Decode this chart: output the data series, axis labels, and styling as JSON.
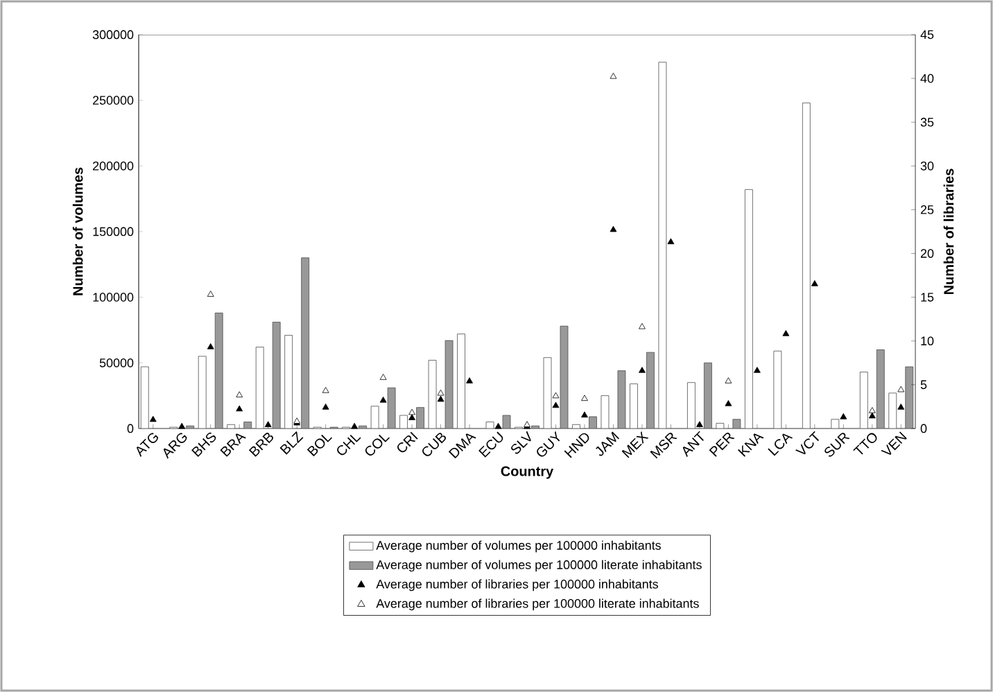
{
  "chart_data": {
    "type": "bar",
    "xlabel": "Country",
    "ylabel": "Number of volumes",
    "y2label": "Number of libraries",
    "categories": [
      "ATG",
      "ARG",
      "BHS",
      "BRA",
      "BRB",
      "BLZ",
      "BOL",
      "CHL",
      "COL",
      "CRI",
      "CUB",
      "DMA",
      "ECU",
      "SLV",
      "GUY",
      "HND",
      "JAM",
      "MEX",
      "MSR",
      "ANT",
      "PER",
      "KNA",
      "LCA",
      "VCT",
      "SUR",
      "TTO",
      "VEN"
    ],
    "series": [
      {
        "name": "Average number of volumes per 100000 inhabitants",
        "color": "#ffffff",
        "values": [
          47000,
          1000,
          55000,
          3000,
          62000,
          71000,
          1000,
          1000,
          17000,
          10000,
          52000,
          72000,
          5000,
          1000,
          54000,
          3000,
          25000,
          34000,
          279000,
          35000,
          4000,
          182000,
          59000,
          248000,
          7000,
          43000,
          27000
        ]
      },
      {
        "name": "Average number of volumes per 100000 literate inhabitants",
        "color": "#999999",
        "values": [
          null,
          2000,
          88000,
          5000,
          81000,
          130000,
          1000,
          2000,
          31000,
          16000,
          67000,
          null,
          10000,
          2000,
          78000,
          9000,
          44000,
          58000,
          null,
          50000,
          7000,
          null,
          null,
          null,
          null,
          60000,
          47000
        ]
      },
      {
        "name": "Average number of libraries per 100000 inhabitants",
        "type": "scatter",
        "axis": "y2",
        "marker": "triangle",
        "color": "#000000",
        "values": [
          1.0,
          0.2,
          9.3,
          2.2,
          0.4,
          0.6,
          2.4,
          0.2,
          3.2,
          1.2,
          3.3,
          5.4,
          0.2,
          0.2,
          2.6,
          1.5,
          22.7,
          6.6,
          21.3,
          0.4,
          2.8,
          6.6,
          10.8,
          16.5,
          1.3,
          1.4,
          2.4
        ]
      },
      {
        "name": "Average number of libraries per 100000 literate inhabitants",
        "type": "scatter",
        "axis": "y2",
        "marker": "triangle",
        "color": "#ffffff",
        "values": [
          null,
          null,
          15.3,
          3.8,
          null,
          0.8,
          4.3,
          null,
          5.8,
          1.8,
          4.0,
          null,
          null,
          0.4,
          3.7,
          3.4,
          40.2,
          11.6,
          null,
          null,
          5.4,
          null,
          null,
          null,
          null,
          2.0,
          4.4
        ]
      }
    ],
    "ylim": [
      0,
      300000
    ],
    "yticks": [
      0,
      50000,
      100000,
      150000,
      200000,
      250000,
      300000
    ],
    "y2lim": [
      0,
      45
    ],
    "y2ticks": [
      0,
      5,
      10,
      15,
      20,
      25,
      30,
      35,
      40,
      45
    ],
    "legend": "bottom",
    "grid": false
  }
}
